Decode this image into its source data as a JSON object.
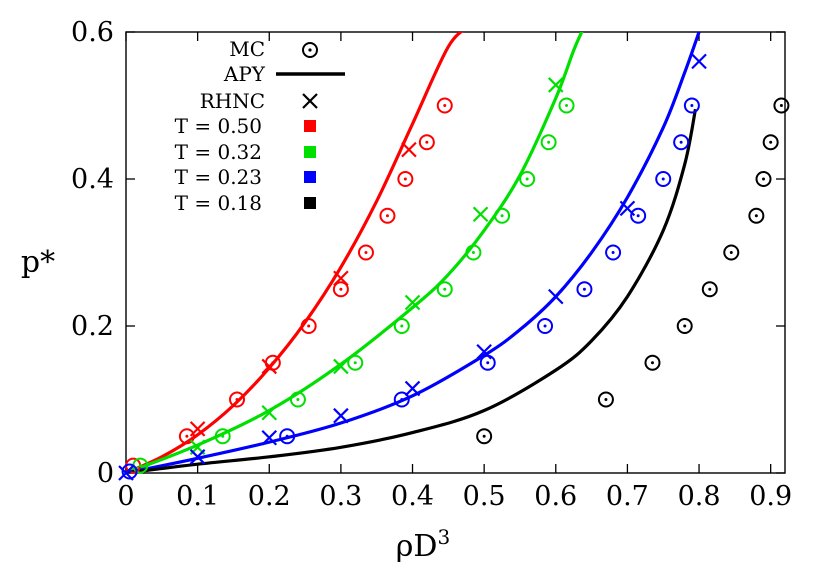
{
  "chart_data": {
    "type": "scatter",
    "title": "",
    "xlabel": "ρD",
    "xlabel_superscript": "3",
    "ylabel": "p*",
    "xlim": [
      0,
      0.92
    ],
    "ylim": [
      0,
      0.6
    ],
    "x_ticks": [
      {
        "value": 0,
        "label": "0"
      },
      {
        "value": 0.1,
        "label": "0.1"
      },
      {
        "value": 0.2,
        "label": "0.2"
      },
      {
        "value": 0.3,
        "label": "0.3"
      },
      {
        "value": 0.4,
        "label": "0.4"
      },
      {
        "value": 0.5,
        "label": "0.5"
      },
      {
        "value": 0.6,
        "label": "0.6"
      },
      {
        "value": 0.7,
        "label": "0.7"
      },
      {
        "value": 0.8,
        "label": "0.8"
      },
      {
        "value": 0.9,
        "label": "0.9"
      }
    ],
    "y_ticks": [
      {
        "value": 0,
        "label": "0"
      },
      {
        "value": 0.2,
        "label": "0.2"
      },
      {
        "value": 0.4,
        "label": "0.4"
      },
      {
        "value": 0.6,
        "label": "0.6"
      }
    ],
    "grid": false,
    "legend": {
      "placement": "top-left",
      "methods": [
        {
          "label": "MC",
          "symbol": "circle-dot"
        },
        {
          "label": "APY",
          "symbol": "line"
        },
        {
          "label": "RHNC",
          "symbol": "cross"
        }
      ],
      "temperatures": [
        {
          "label": "T = 0.50",
          "color": "#ff0000"
        },
        {
          "label": "T = 0.32",
          "color": "#00e000"
        },
        {
          "label": "T = 0.23",
          "color": "#0000ff"
        },
        {
          "label": "T = 0.18",
          "color": "#000000"
        }
      ]
    },
    "series": [
      {
        "temperature": "T = 0.50",
        "color": "#ff0000",
        "mc": [
          [
            0.01,
            0.01
          ],
          [
            0.085,
            0.05
          ],
          [
            0.155,
            0.1
          ],
          [
            0.205,
            0.15
          ],
          [
            0.255,
            0.2
          ],
          [
            0.3,
            0.25
          ],
          [
            0.335,
            0.3
          ],
          [
            0.365,
            0.35
          ],
          [
            0.39,
            0.4
          ],
          [
            0.42,
            0.45
          ],
          [
            0.445,
            0.5
          ]
        ],
        "rhnc": [
          [
            0.1,
            0.06
          ],
          [
            0.2,
            0.145
          ],
          [
            0.3,
            0.265
          ],
          [
            0.395,
            0.44
          ]
        ],
        "apy": [
          [
            0,
            0
          ],
          [
            0.05,
            0.022
          ],
          [
            0.1,
            0.052
          ],
          [
            0.15,
            0.092
          ],
          [
            0.2,
            0.143
          ],
          [
            0.25,
            0.205
          ],
          [
            0.3,
            0.28
          ],
          [
            0.35,
            0.37
          ],
          [
            0.4,
            0.475
          ],
          [
            0.45,
            0.58
          ],
          [
            0.48,
            0.608
          ]
        ]
      },
      {
        "temperature": "T = 0.32",
        "color": "#00e000",
        "mc": [
          [
            0.02,
            0.01
          ],
          [
            0.135,
            0.05
          ],
          [
            0.24,
            0.1
          ],
          [
            0.32,
            0.15
          ],
          [
            0.385,
            0.2
          ],
          [
            0.445,
            0.25
          ],
          [
            0.485,
            0.3
          ],
          [
            0.525,
            0.35
          ],
          [
            0.56,
            0.4
          ],
          [
            0.59,
            0.45
          ],
          [
            0.615,
            0.5
          ]
        ],
        "rhnc": [
          [
            0.1,
            0.035
          ],
          [
            0.2,
            0.082
          ],
          [
            0.3,
            0.145
          ],
          [
            0.4,
            0.232
          ],
          [
            0.495,
            0.352
          ],
          [
            0.6,
            0.528
          ]
        ],
        "apy": [
          [
            0,
            0
          ],
          [
            0.1,
            0.038
          ],
          [
            0.2,
            0.085
          ],
          [
            0.3,
            0.148
          ],
          [
            0.4,
            0.225
          ],
          [
            0.45,
            0.27
          ],
          [
            0.5,
            0.33
          ],
          [
            0.55,
            0.405
          ],
          [
            0.6,
            0.51
          ],
          [
            0.625,
            0.575
          ],
          [
            0.64,
            0.608
          ]
        ]
      },
      {
        "temperature": "T = 0.23",
        "color": "#0000ff",
        "mc": [
          [
            0.005,
            0.002
          ],
          [
            0.225,
            0.05
          ],
          [
            0.385,
            0.1
          ],
          [
            0.505,
            0.15
          ],
          [
            0.585,
            0.2
          ],
          [
            0.64,
            0.25
          ],
          [
            0.68,
            0.3
          ],
          [
            0.715,
            0.35
          ],
          [
            0.75,
            0.4
          ],
          [
            0.775,
            0.45
          ],
          [
            0.79,
            0.5
          ]
        ],
        "rhnc": [
          [
            0,
            0
          ],
          [
            0.1,
            0.022
          ],
          [
            0.2,
            0.048
          ],
          [
            0.3,
            0.078
          ],
          [
            0.4,
            0.115
          ],
          [
            0.5,
            0.165
          ],
          [
            0.6,
            0.24
          ],
          [
            0.7,
            0.36
          ],
          [
            0.8,
            0.56
          ]
        ],
        "apy": [
          [
            0,
            0
          ],
          [
            0.1,
            0.02
          ],
          [
            0.2,
            0.042
          ],
          [
            0.3,
            0.068
          ],
          [
            0.4,
            0.105
          ],
          [
            0.5,
            0.16
          ],
          [
            0.55,
            0.195
          ],
          [
            0.6,
            0.24
          ],
          [
            0.65,
            0.3
          ],
          [
            0.7,
            0.375
          ],
          [
            0.75,
            0.47
          ],
          [
            0.78,
            0.545
          ],
          [
            0.8,
            0.6
          ]
        ]
      },
      {
        "temperature": "T = 0.18",
        "color": "#000000",
        "mc": [
          [
            0.5,
            0.05
          ],
          [
            0.67,
            0.1
          ],
          [
            0.735,
            0.15
          ],
          [
            0.78,
            0.2
          ],
          [
            0.815,
            0.25
          ],
          [
            0.845,
            0.3
          ],
          [
            0.88,
            0.35
          ],
          [
            0.89,
            0.4
          ],
          [
            0.9,
            0.45
          ],
          [
            0.915,
            0.5
          ]
        ],
        "rhnc": [],
        "apy": [
          [
            0,
            0
          ],
          [
            0.1,
            0.012
          ],
          [
            0.2,
            0.022
          ],
          [
            0.3,
            0.035
          ],
          [
            0.4,
            0.055
          ],
          [
            0.5,
            0.085
          ],
          [
            0.6,
            0.14
          ],
          [
            0.65,
            0.18
          ],
          [
            0.7,
            0.24
          ],
          [
            0.75,
            0.33
          ],
          [
            0.78,
            0.42
          ],
          [
            0.795,
            0.495
          ]
        ]
      }
    ]
  }
}
